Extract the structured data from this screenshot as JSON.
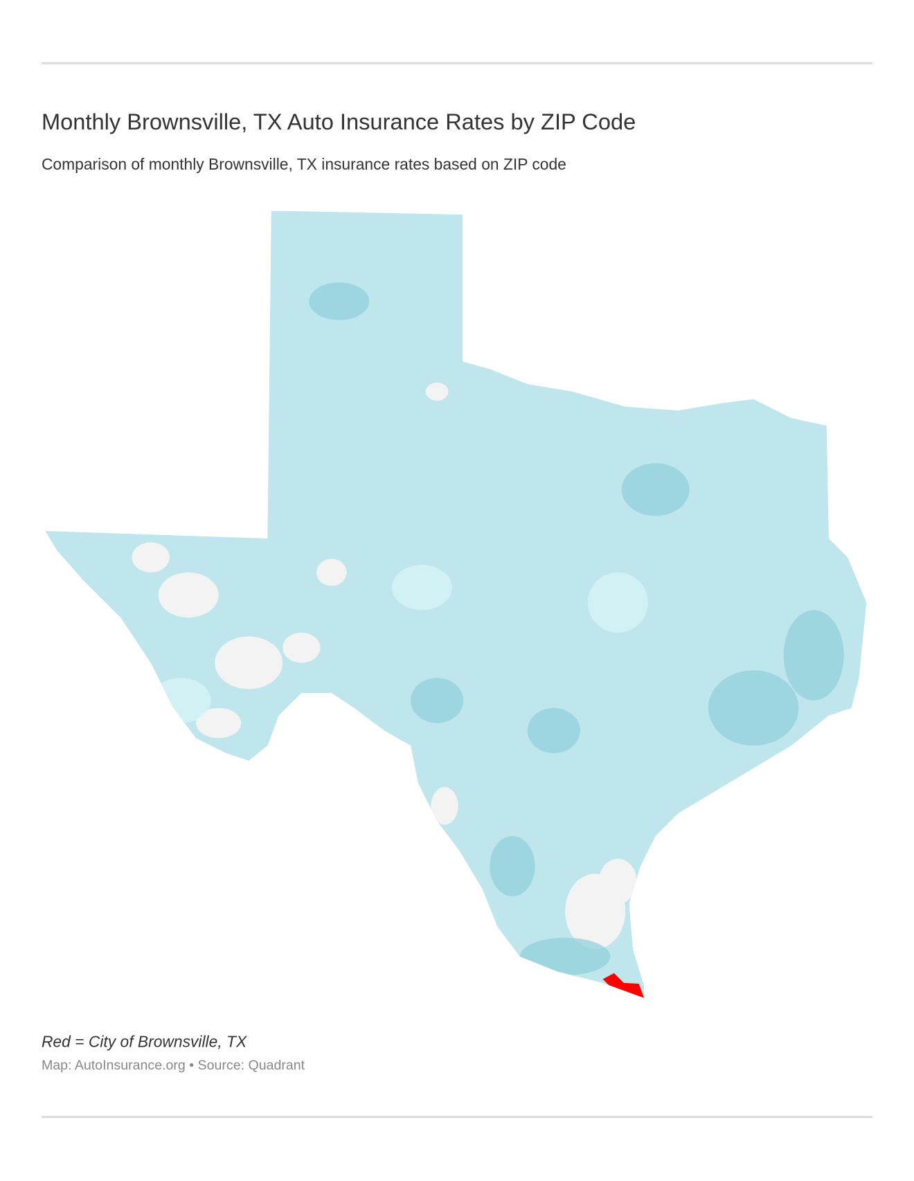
{
  "header": {
    "title": "Monthly Brownsville, TX Auto Insurance Rates by ZIP Code",
    "subtitle": "Comparison of monthly Brownsville, TX insurance rates based on ZIP code"
  },
  "footer": {
    "note": "Red = City of Brownsville, TX",
    "source": "Map: AutoInsurance.org • Source: Quadrant"
  }
}
